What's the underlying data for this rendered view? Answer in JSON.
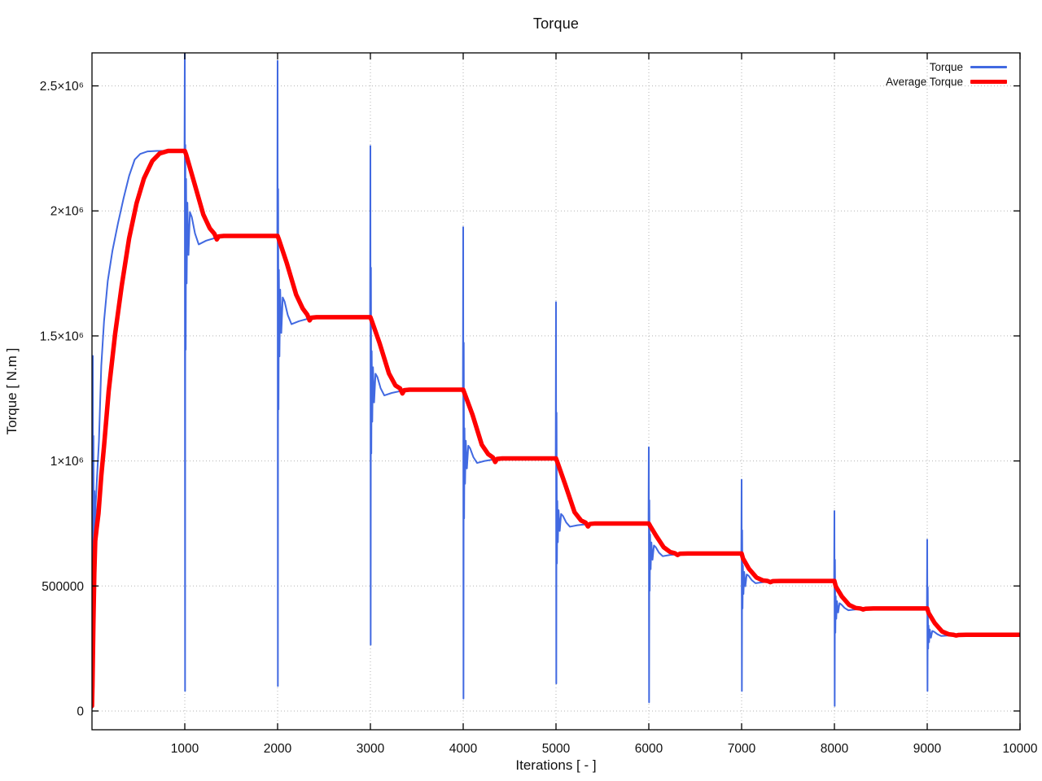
{
  "page": {
    "background": "#ffffff"
  },
  "chart_data": {
    "type": "line",
    "title": "Torque",
    "xlabel": "Iterations [ - ]",
    "ylabel": "Torque [ N.m ]",
    "xlim": [
      0,
      10000
    ],
    "ylim": [
      -75000,
      2632000
    ],
    "grid": true,
    "legend_position": "top-right-inside",
    "colors": {
      "axis": "#000000",
      "grid": "#b3b3b3",
      "torque": "#4169e1",
      "average_torque": "#ff0000",
      "text": "#101010"
    },
    "x_ticks": [
      {
        "v": 1000,
        "label": "1000"
      },
      {
        "v": 2000,
        "label": "2000"
      },
      {
        "v": 3000,
        "label": "3000"
      },
      {
        "v": 4000,
        "label": "4000"
      },
      {
        "v": 5000,
        "label": "5000"
      },
      {
        "v": 6000,
        "label": "6000"
      },
      {
        "v": 7000,
        "label": "7000"
      },
      {
        "v": 8000,
        "label": "8000"
      },
      {
        "v": 9000,
        "label": "9000"
      },
      {
        "v": 10000,
        "label": "10000"
      }
    ],
    "y_ticks": [
      {
        "v": 0,
        "label": "0"
      },
      {
        "v": 500000,
        "label": "500000"
      },
      {
        "v": 1000000,
        "label": "1×10⁶"
      },
      {
        "v": 1500000,
        "label": "1.5×10⁶"
      },
      {
        "v": 2000000,
        "label": "2×10⁶"
      },
      {
        "v": 2500000,
        "label": "2.5×10⁶"
      }
    ],
    "steady_plateaus_Nm": [
      2240000,
      1900000,
      1575000,
      1285000,
      1010000,
      750000,
      630000,
      520000,
      410000,
      305000
    ],
    "spikes": [
      {
        "x": 1000,
        "peak": 2628000,
        "trough": 80000
      },
      {
        "x": 2000,
        "peak": 2600000,
        "trough": 100000
      },
      {
        "x": 3000,
        "peak": 2260000,
        "trough": 265000
      },
      {
        "x": 4000,
        "peak": 1935000,
        "trough": 50000
      },
      {
        "x": 5000,
        "peak": 1635000,
        "trough": 110000
      },
      {
        "x": 6000,
        "peak": 1055000,
        "trough": 35000
      },
      {
        "x": 7000,
        "peak": 925000,
        "trough": 80000
      },
      {
        "x": 8000,
        "peak": 800000,
        "trough": 20000
      },
      {
        "x": 9000,
        "peak": 685000,
        "trough": 80000
      }
    ],
    "series": [
      {
        "name": "Torque",
        "color": "#4169e1",
        "width": 2,
        "points": [
          [
            0,
            10000
          ],
          [
            6,
            700000
          ],
          [
            9,
            1420000
          ],
          [
            12,
            300000
          ],
          [
            16,
            1100000
          ],
          [
            20,
            150000
          ],
          [
            26,
            880000
          ],
          [
            32,
            540000
          ],
          [
            40,
            830000
          ],
          [
            55,
            940000
          ],
          [
            75,
            1080000
          ],
          [
            100,
            1380000
          ],
          [
            130,
            1560000
          ],
          [
            170,
            1720000
          ],
          [
            220,
            1840000
          ],
          [
            280,
            1950000
          ],
          [
            340,
            2050000
          ],
          [
            400,
            2140000
          ],
          [
            460,
            2205000
          ],
          [
            520,
            2228000
          ],
          [
            600,
            2238000
          ],
          [
            700,
            2240000
          ],
          [
            997,
            2240000
          ],
          [
            1000,
            2628000
          ],
          [
            1003,
            80000
          ],
          [
            1006,
            2264000
          ],
          [
            1010,
            1445000
          ],
          [
            1014,
            2128000
          ],
          [
            1020,
            1710000
          ],
          [
            1028,
            2033000
          ],
          [
            1040,
            1824000
          ],
          [
            1055,
            1995000
          ],
          [
            1075,
            1976000
          ],
          [
            1110,
            1910000
          ],
          [
            1150,
            1866000
          ],
          [
            1230,
            1881000
          ],
          [
            1330,
            1892000
          ],
          [
            1450,
            1900000
          ],
          [
            1997,
            1900000
          ],
          [
            2000,
            2600000
          ],
          [
            2003,
            100000
          ],
          [
            2006,
            2088000
          ],
          [
            2010,
            1206000
          ],
          [
            2014,
            1764000
          ],
          [
            2020,
            1418000
          ],
          [
            2028,
            1685000
          ],
          [
            2040,
            1512000
          ],
          [
            2055,
            1654000
          ],
          [
            2075,
            1638000
          ],
          [
            2110,
            1583000
          ],
          [
            2150,
            1547000
          ],
          [
            2230,
            1559000
          ],
          [
            2330,
            1569000
          ],
          [
            2450,
            1575000
          ],
          [
            2997,
            1575000
          ],
          [
            3000,
            2260000
          ],
          [
            3003,
            265000
          ],
          [
            3006,
            1773000
          ],
          [
            3010,
            1030000
          ],
          [
            3014,
            1439000
          ],
          [
            3020,
            1157000
          ],
          [
            3028,
            1375000
          ],
          [
            3040,
            1234000
          ],
          [
            3055,
            1349000
          ],
          [
            3075,
            1336000
          ],
          [
            3110,
            1291000
          ],
          [
            3150,
            1262000
          ],
          [
            3230,
            1272000
          ],
          [
            3330,
            1280000
          ],
          [
            3450,
            1285000
          ],
          [
            3997,
            1285000
          ],
          [
            4000,
            1935000
          ],
          [
            4003,
            50000
          ],
          [
            4006,
            1473000
          ],
          [
            4010,
            770000
          ],
          [
            4014,
            1131000
          ],
          [
            4020,
            909000
          ],
          [
            4028,
            1081000
          ],
          [
            4040,
            970000
          ],
          [
            4055,
            1061000
          ],
          [
            4075,
            1050000
          ],
          [
            4110,
            1015000
          ],
          [
            4150,
            992000
          ],
          [
            4230,
            1000000
          ],
          [
            4330,
            1006000
          ],
          [
            4450,
            1010000
          ],
          [
            4997,
            1010000
          ],
          [
            5000,
            1635000
          ],
          [
            5003,
            110000
          ],
          [
            5006,
            1193000
          ],
          [
            5010,
            590000
          ],
          [
            5014,
            840000
          ],
          [
            5020,
            675000
          ],
          [
            5028,
            803000
          ],
          [
            5040,
            720000
          ],
          [
            5055,
            788000
          ],
          [
            5075,
            780000
          ],
          [
            5110,
            754000
          ],
          [
            5150,
            737000
          ],
          [
            5230,
            743000
          ],
          [
            5330,
            747000
          ],
          [
            5450,
            750000
          ],
          [
            5997,
            750000
          ],
          [
            6000,
            1055000
          ],
          [
            6003,
            35000
          ],
          [
            6006,
            843000
          ],
          [
            6010,
            481000
          ],
          [
            6014,
            706000
          ],
          [
            6020,
            567000
          ],
          [
            6028,
            674000
          ],
          [
            6040,
            605000
          ],
          [
            6055,
            662000
          ],
          [
            6075,
            655000
          ],
          [
            6110,
            633000
          ],
          [
            6150,
            619000
          ],
          [
            6230,
            624000
          ],
          [
            6330,
            627000
          ],
          [
            6450,
            630000
          ],
          [
            6997,
            630000
          ],
          [
            7000,
            925000
          ],
          [
            7003,
            80000
          ],
          [
            7006,
            723000
          ],
          [
            7010,
            410000
          ],
          [
            7014,
            582000
          ],
          [
            7020,
            468000
          ],
          [
            7028,
            556000
          ],
          [
            7040,
            499000
          ],
          [
            7055,
            546000
          ],
          [
            7075,
            541000
          ],
          [
            7110,
            523000
          ],
          [
            7150,
            511000
          ],
          [
            7230,
            515000
          ],
          [
            7330,
            518000
          ],
          [
            7450,
            520000
          ],
          [
            7997,
            520000
          ],
          [
            8000,
            800000
          ],
          [
            8003,
            20000
          ],
          [
            8006,
            605000
          ],
          [
            8010,
            313000
          ],
          [
            8014,
            459000
          ],
          [
            8020,
            369000
          ],
          [
            8028,
            439000
          ],
          [
            8040,
            394000
          ],
          [
            8055,
            431000
          ],
          [
            8075,
            426000
          ],
          [
            8110,
            412000
          ],
          [
            8150,
            403000
          ],
          [
            8230,
            406000
          ],
          [
            8330,
            408000
          ],
          [
            8450,
            410000
          ],
          [
            8997,
            410000
          ],
          [
            9000,
            685000
          ],
          [
            9003,
            80000
          ],
          [
            9006,
            495000
          ],
          [
            9010,
            249000
          ],
          [
            9014,
            342000
          ],
          [
            9020,
            275000
          ],
          [
            9028,
            326000
          ],
          [
            9040,
            293000
          ],
          [
            9055,
            320000
          ],
          [
            9075,
            317000
          ],
          [
            9110,
            307000
          ],
          [
            9150,
            300000
          ],
          [
            9230,
            302000
          ],
          [
            9330,
            304000
          ],
          [
            9450,
            305000
          ],
          [
            10000,
            305000
          ]
        ]
      },
      {
        "name": "Average Torque",
        "color": "#ff0000",
        "width": 5.5,
        "points": [
          [
            0,
            20000
          ],
          [
            5,
            100000
          ],
          [
            15,
            350000
          ],
          [
            25,
            550000
          ],
          [
            35,
            680000
          ],
          [
            50,
            730000
          ],
          [
            70,
            790000
          ],
          [
            100,
            940000
          ],
          [
            130,
            1060000
          ],
          [
            180,
            1280000
          ],
          [
            250,
            1510000
          ],
          [
            320,
            1700000
          ],
          [
            400,
            1890000
          ],
          [
            480,
            2030000
          ],
          [
            560,
            2130000
          ],
          [
            650,
            2200000
          ],
          [
            730,
            2230000
          ],
          [
            820,
            2240000
          ],
          [
            1000,
            2240000
          ],
          [
            1015,
            2225000
          ],
          [
            1100,
            2115000
          ],
          [
            1200,
            1985000
          ],
          [
            1270,
            1930000
          ],
          [
            1320,
            1908000
          ],
          [
            1345,
            1886000
          ],
          [
            1365,
            1898000
          ],
          [
            1420,
            1900000
          ],
          [
            2000,
            1900000
          ],
          [
            2015,
            1885000
          ],
          [
            2100,
            1790000
          ],
          [
            2200,
            1665000
          ],
          [
            2270,
            1610000
          ],
          [
            2320,
            1585000
          ],
          [
            2345,
            1562000
          ],
          [
            2365,
            1573000
          ],
          [
            2420,
            1575000
          ],
          [
            3000,
            1575000
          ],
          [
            3015,
            1560000
          ],
          [
            3100,
            1470000
          ],
          [
            3200,
            1350000
          ],
          [
            3270,
            1302000
          ],
          [
            3320,
            1290000
          ],
          [
            3345,
            1270000
          ],
          [
            3365,
            1283000
          ],
          [
            3420,
            1285000
          ],
          [
            4000,
            1285000
          ],
          [
            4015,
            1270000
          ],
          [
            4100,
            1185000
          ],
          [
            4200,
            1065000
          ],
          [
            4270,
            1027000
          ],
          [
            4320,
            1014000
          ],
          [
            4345,
            996000
          ],
          [
            4365,
            1008000
          ],
          [
            4420,
            1010000
          ],
          [
            5000,
            1010000
          ],
          [
            5015,
            995000
          ],
          [
            5100,
            905000
          ],
          [
            5200,
            795000
          ],
          [
            5270,
            762000
          ],
          [
            5320,
            753000
          ],
          [
            5345,
            738000
          ],
          [
            5365,
            748000
          ],
          [
            5420,
            750000
          ],
          [
            6000,
            750000
          ],
          [
            6015,
            740000
          ],
          [
            6080,
            700000
          ],
          [
            6160,
            655000
          ],
          [
            6230,
            636000
          ],
          [
            6280,
            631000
          ],
          [
            6310,
            624000
          ],
          [
            6335,
            629000
          ],
          [
            6420,
            630000
          ],
          [
            7000,
            630000
          ],
          [
            7015,
            610000
          ],
          [
            7080,
            568000
          ],
          [
            7160,
            534000
          ],
          [
            7230,
            522000
          ],
          [
            7280,
            520000
          ],
          [
            7310,
            515000
          ],
          [
            7335,
            519000
          ],
          [
            7420,
            520000
          ],
          [
            8000,
            520000
          ],
          [
            8015,
            498000
          ],
          [
            8080,
            458000
          ],
          [
            8160,
            424000
          ],
          [
            8230,
            412000
          ],
          [
            8280,
            410000
          ],
          [
            8310,
            406000
          ],
          [
            8335,
            409000
          ],
          [
            8420,
            410000
          ],
          [
            9000,
            410000
          ],
          [
            9015,
            392000
          ],
          [
            9080,
            352000
          ],
          [
            9160,
            318000
          ],
          [
            9230,
            307000
          ],
          [
            9280,
            305000
          ],
          [
            9310,
            302000
          ],
          [
            9335,
            304000
          ],
          [
            9420,
            305000
          ],
          [
            10000,
            305000
          ]
        ]
      }
    ]
  }
}
